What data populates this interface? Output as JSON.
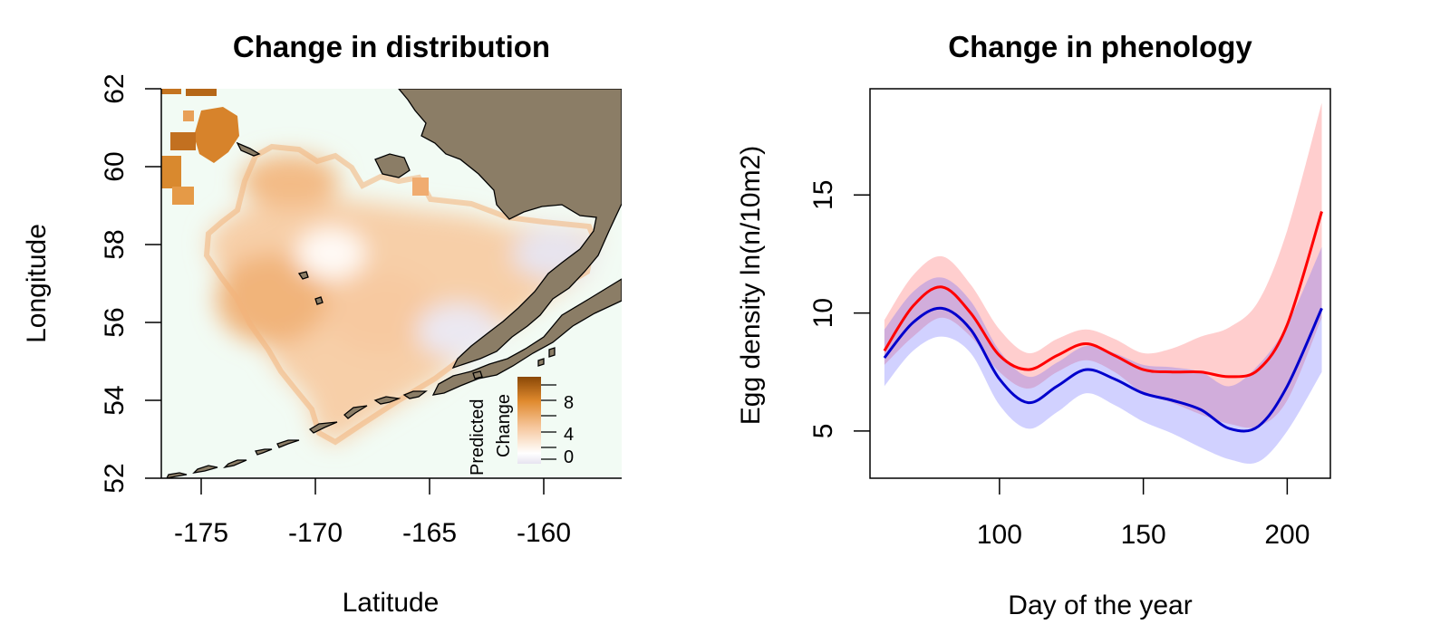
{
  "chart_data": [
    {
      "type": "heatmap",
      "title": "Change in distribution",
      "xlabel": "Latitude",
      "ylabel": "Longitude",
      "xlim": [
        -176.5,
        -156.5
      ],
      "ylim": [
        52,
        62
      ],
      "x_ticks": [
        "-175",
        "-170",
        "-165",
        "-160"
      ],
      "y_ticks": [
        "52",
        "54",
        "56",
        "58",
        "60",
        "62"
      ],
      "legend": {
        "title_lines": [
          "Predicted",
          "Change"
        ],
        "labels": [
          "8",
          "4",
          "0"
        ],
        "range": [
          -1,
          10
        ],
        "placement": "bottom-right",
        "colors": [
          "#e6e3f0",
          "#ffffff",
          "#f6c79d",
          "#e08a2e",
          "#8a4806"
        ]
      },
      "grid": false,
      "colors": {
        "land": "#8b7d66",
        "ocean": "#f2fbf4",
        "coastline": "#000000"
      }
    },
    {
      "type": "line",
      "title": "Change in phenology",
      "xlabel": "Day of the year",
      "ylabel": "Egg density ln(n/10m2)",
      "xlim": [
        55,
        215
      ],
      "ylim": [
        3,
        19.5
      ],
      "x_ticks": [
        "100",
        "150",
        "200"
      ],
      "y_ticks": [
        "5",
        "10",
        "15"
      ],
      "grid": false,
      "x": [
        60,
        70,
        80,
        90,
        100,
        110,
        120,
        130,
        140,
        150,
        160,
        170,
        180,
        190,
        200,
        212
      ],
      "series": [
        {
          "color": "#ff0000",
          "band_color": "rgba(255,80,80,0.28)",
          "values": [
            8.4,
            10.3,
            11.1,
            10.0,
            8.2,
            7.6,
            8.2,
            8.7,
            8.2,
            7.6,
            7.5,
            7.5,
            7.3,
            7.6,
            9.5,
            14.3
          ],
          "lower": [
            7.8,
            9.0,
            9.8,
            9.0,
            7.5,
            6.8,
            7.5,
            8.0,
            7.5,
            6.6,
            6.2,
            5.7,
            5.3,
            5.2,
            6.3,
            9.8
          ],
          "upper": [
            9.7,
            11.6,
            12.4,
            11.2,
            9.3,
            8.3,
            8.9,
            9.3,
            8.9,
            8.3,
            8.5,
            9.0,
            9.4,
            10.5,
            13.5,
            18.9
          ]
        },
        {
          "color": "#0000cc",
          "band_color": "rgba(90,90,255,0.28)",
          "values": [
            8.1,
            9.6,
            10.2,
            9.3,
            7.2,
            6.2,
            6.9,
            7.6,
            7.2,
            6.6,
            6.3,
            5.9,
            5.1,
            5.2,
            6.9,
            10.2
          ],
          "lower": [
            6.9,
            8.4,
            9.0,
            8.3,
            6.1,
            5.1,
            5.8,
            6.6,
            6.1,
            5.4,
            4.9,
            4.3,
            3.8,
            3.7,
            5.0,
            7.5
          ],
          "upper": [
            9.3,
            10.9,
            11.5,
            10.5,
            8.4,
            7.3,
            7.9,
            8.6,
            8.3,
            7.8,
            7.7,
            7.5,
            6.9,
            7.8,
            9.5,
            12.8
          ]
        }
      ]
    }
  ]
}
